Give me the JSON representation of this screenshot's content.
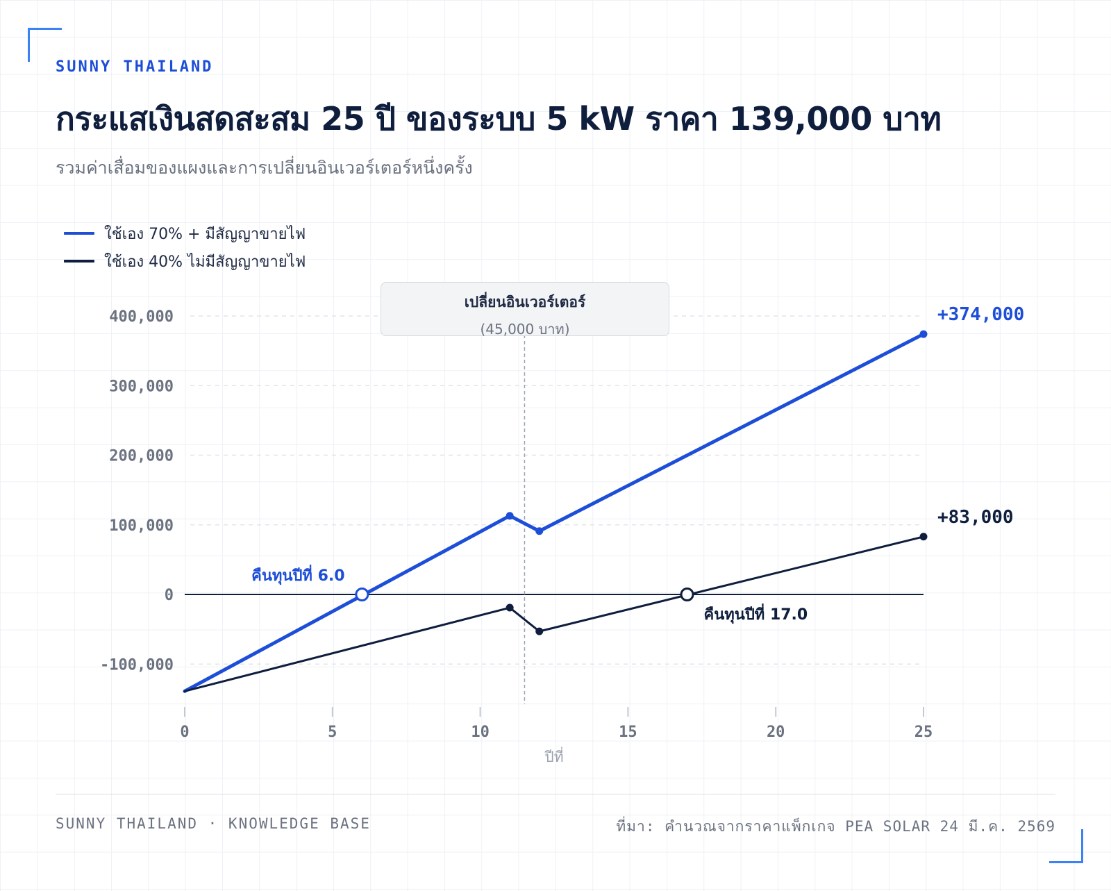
{
  "brand": "SUNNY THAILAND",
  "title": "กระแสเงินสดสะสม 25 ปี ของระบบ 5 kW ราคา 139,000 บาท",
  "subtitle": "รวมค่าเสื่อมของแผงและการเปลี่ยนอินเวอร์เตอร์หนึ่งครั้ง",
  "legend": [
    {
      "label": "ใช้เอง 70% + มีสัญญาขายไฟ",
      "color": "#1d4ed8"
    },
    {
      "label": "ใช้เอง 40% ไม่มีสัญญาขายไฟ",
      "color": "#0f1e3d"
    }
  ],
  "annotation": {
    "title": "เปลี่ยนอินเวอร์เตอร์",
    "subtitle": "(45,000 บาท)",
    "x": 11.5
  },
  "chart_data": {
    "type": "line",
    "xlabel": "ปีที่",
    "ylabel": "",
    "xlim": [
      0,
      25
    ],
    "ylim": [
      -140000,
      400000
    ],
    "xticks": [
      0,
      5,
      10,
      15,
      20,
      25
    ],
    "yticks": [
      400000,
      300000,
      200000,
      100000,
      0,
      -100000
    ],
    "xtick_labels": [
      "0",
      "5",
      "10",
      "15",
      "20",
      "25"
    ],
    "ytick_labels": [
      "400,000",
      "300,000",
      "200,000",
      "100,000",
      "0",
      "-100,000"
    ],
    "grid": "horizontal-dashed",
    "legend_position": "top-left",
    "series": [
      {
        "name": "ใช้เอง 70% + มีสัญญาขายไฟ",
        "color": "#1d4ed8",
        "points": [
          [
            0,
            -139000
          ],
          [
            11,
            113000
          ],
          [
            12,
            91000
          ],
          [
            25,
            374000
          ]
        ],
        "end_label": "+374,000",
        "payback_year": 6.0,
        "payback_label": "คืนทุนปีที่ 6.0"
      },
      {
        "name": "ใช้เอง 40% ไม่มีสัญญาขายไฟ",
        "color": "#0f1e3d",
        "points": [
          [
            0,
            -139000
          ],
          [
            11,
            -19000
          ],
          [
            12,
            -53000
          ],
          [
            25,
            83000
          ]
        ],
        "end_label": "+83,000",
        "payback_year": 17.0,
        "payback_label": "คืนทุนปีที่ 17.0"
      }
    ]
  },
  "footer": {
    "left": "SUNNY THAILAND · KNOWLEDGE BASE",
    "right": "ที่มา: คำนวณจากราคาแพ็กเกจ PEA SOLAR 24 มี.ค. 2569"
  }
}
